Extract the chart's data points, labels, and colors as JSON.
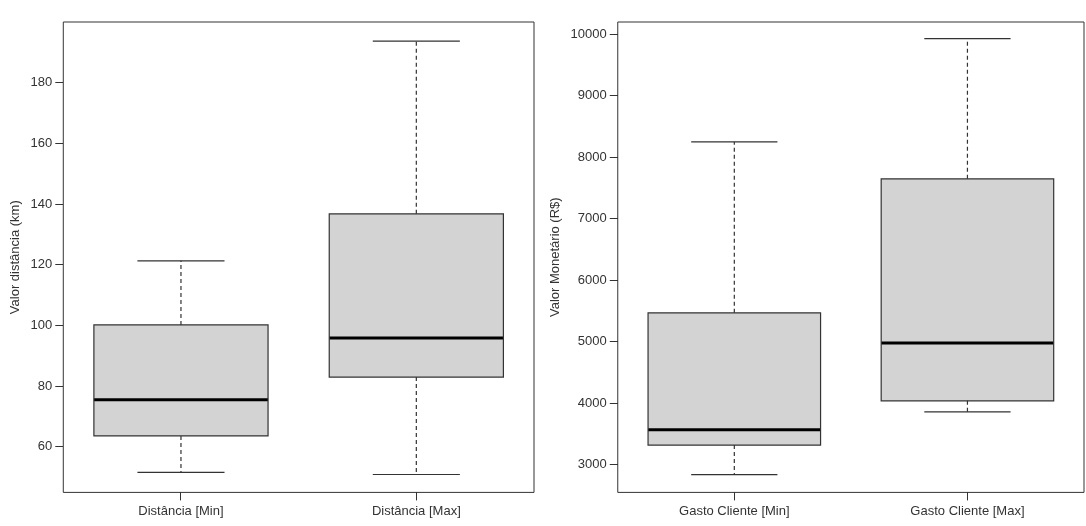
{
  "chart_data": [
    {
      "type": "box",
      "ylabel": "Valor distância (km)",
      "categories": [
        "Distância [Min]",
        "Distância [Max]"
      ],
      "color": "#d3d3d3",
      "ylim": [
        45,
        200
      ],
      "yticks": [
        60,
        80,
        100,
        120,
        140,
        160,
        180
      ],
      "boxes": [
        {
          "low": 51.6,
          "q1": 63.6,
          "median": 75.5,
          "q3": 100.2,
          "high": 121.3
        },
        {
          "low": 50.9,
          "q1": 83,
          "median": 95.9,
          "q3": 136.8,
          "high": 193.7
        }
      ]
    },
    {
      "type": "box",
      "ylabel": "Valor Monetário (R$)",
      "categories": [
        "Gasto Cliente [Min]",
        "Gasto Cliente [Max]"
      ],
      "color": "#d3d3d3",
      "ylim": [
        2550,
        10200
      ],
      "yticks": [
        3000,
        4000,
        5000,
        6000,
        7000,
        8000,
        9000,
        10000
      ],
      "boxes": [
        {
          "low": 2840,
          "q1": 3320,
          "median": 3570,
          "q3": 5470,
          "high": 8250
        },
        {
          "low": 3860,
          "q1": 4040,
          "median": 4980,
          "q3": 7650,
          "high": 9930
        }
      ]
    }
  ]
}
